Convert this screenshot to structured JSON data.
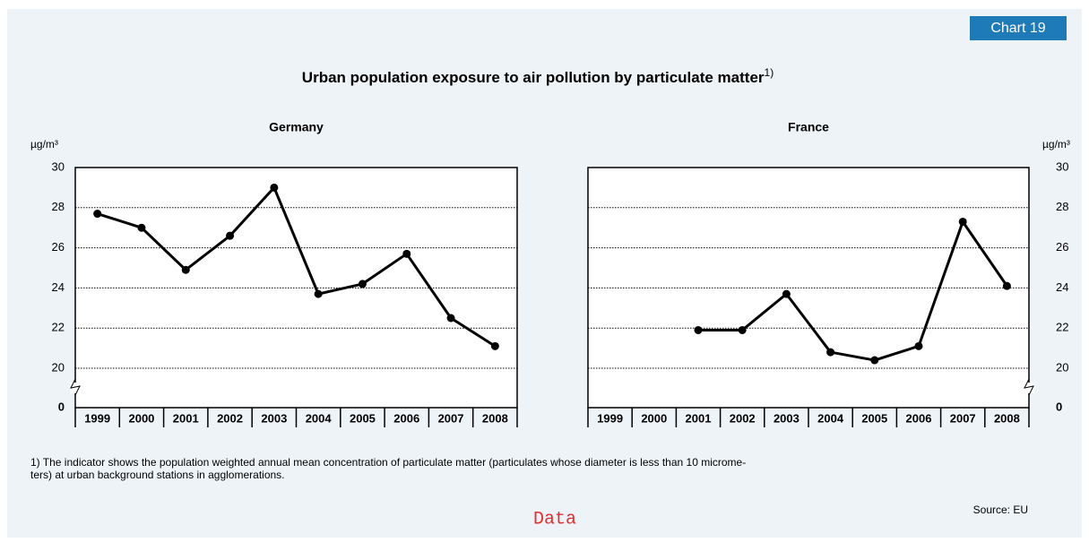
{
  "badge": "Chart 19",
  "title": "Urban population exposure to air pollution by particulate matter",
  "title_note": "1)",
  "footnote": [
    "1) The indicator shows the population weighted annual mean concentration of particulate matter (particulates whose diameter is less than 10 microme-",
    "ters) at urban background stations in agglomerations."
  ],
  "source": "Source: EU",
  "link": "Data",
  "chart_data": [
    {
      "type": "line",
      "title": "Germany",
      "ylabel": "µg/m³",
      "yaxis_side": "left",
      "categories": [
        "1999",
        "2000",
        "2001",
        "2002",
        "2003",
        "2004",
        "2005",
        "2006",
        "2007",
        "2008"
      ],
      "series": [
        {
          "name": "Germany",
          "color": "#000000",
          "values": [
            27.7,
            27.0,
            24.9,
            26.6,
            29.0,
            23.7,
            24.2,
            25.7,
            22.5,
            21.1
          ]
        }
      ],
      "ylim": [
        0,
        30
      ],
      "ybreak": 20,
      "yticks": [
        0,
        20,
        22,
        24,
        26,
        28,
        30
      ],
      "grid": true
    },
    {
      "type": "line",
      "title": "France",
      "ylabel": "µg/m³",
      "yaxis_side": "right",
      "categories": [
        "1999",
        "2000",
        "2001",
        "2002",
        "2003",
        "2004",
        "2005",
        "2006",
        "2007",
        "2008"
      ],
      "series": [
        {
          "name": "France",
          "color": "#000000",
          "values": [
            null,
            null,
            21.9,
            21.9,
            23.7,
            20.8,
            20.4,
            21.1,
            27.3,
            24.1
          ]
        }
      ],
      "ylim": [
        0,
        30
      ],
      "ybreak": 20,
      "yticks": [
        0,
        20,
        22,
        24,
        26,
        28,
        30
      ],
      "grid": true
    }
  ]
}
